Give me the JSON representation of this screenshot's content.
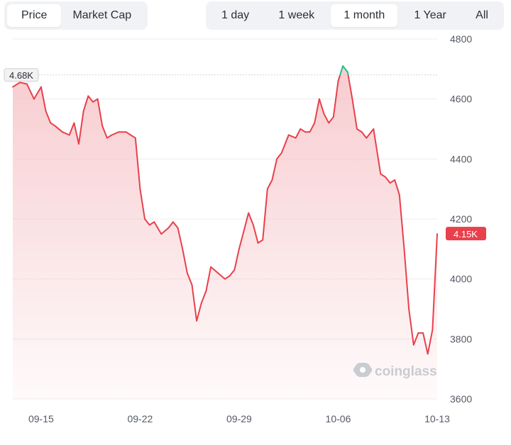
{
  "tabs_left": [
    {
      "label": "Price",
      "active": true
    },
    {
      "label": "Market Cap",
      "active": false
    }
  ],
  "tabs_right": [
    {
      "label": "1 day",
      "active": false
    },
    {
      "label": "1 week",
      "active": false
    },
    {
      "label": "1 month",
      "active": true
    },
    {
      "label": "1 Year",
      "active": false
    },
    {
      "label": "All",
      "active": false
    }
  ],
  "watermark": "coinglass",
  "colors": {
    "down": "#e8404c",
    "up": "#1ec28b",
    "fill": "#f6c3c7",
    "grid": "#ececec",
    "text": "#555a63"
  },
  "chart_data": {
    "type": "area",
    "title": "",
    "xlabel": "",
    "ylabel": "",
    "y_axis_position": "right",
    "ylim": [
      3600,
      4800
    ],
    "xlim": [
      "09-13",
      "10-13"
    ],
    "y_ticks": [
      3600,
      3800,
      4000,
      4200,
      4400,
      4600,
      4800
    ],
    "x_ticks": [
      "09-15",
      "09-22",
      "09-29",
      "10-06",
      "10-13"
    ],
    "grid": true,
    "reference_line": {
      "value": 4680,
      "label": "4.68K"
    },
    "last_value": {
      "value": 4150,
      "label": "4.15K"
    },
    "series": [
      {
        "x": [
          "09-13",
          "09-13",
          "09-14",
          "09-14",
          "09-15",
          "09-15",
          "09-15",
          "09-16",
          "09-16",
          "09-17",
          "09-17",
          "09-17",
          "09-18",
          "09-18",
          "09-18",
          "09-19",
          "09-19",
          "09-19",
          "09-20",
          "09-20",
          "09-21",
          "09-21",
          "09-21",
          "09-22",
          "09-22",
          "09-22",
          "09-23",
          "09-23",
          "09-24",
          "09-24",
          "09-24",
          "09-25",
          "09-25",
          "09-25",
          "09-26",
          "09-26",
          "09-26",
          "09-27",
          "09-27",
          "09-28",
          "09-28",
          "09-28",
          "09-29",
          "09-29",
          "09-29",
          "09-30",
          "09-30",
          "09-30",
          "10-01",
          "10-01",
          "10-01",
          "10-02",
          "10-02",
          "10-03",
          "10-03",
          "10-03",
          "10-04",
          "10-04",
          "10-04",
          "10-05",
          "10-05",
          "10-05",
          "10-06",
          "10-06",
          "10-06",
          "10-07",
          "10-07",
          "10-07",
          "10-08",
          "10-08",
          "10-09",
          "10-09",
          "10-09",
          "10-10",
          "10-10",
          "10-10",
          "10-11",
          "10-11",
          "10-11",
          "10-12",
          "10-12",
          "10-12",
          "10-13",
          "10-13"
        ],
        "values": [
          4640,
          4655,
          4650,
          4600,
          4640,
          4560,
          4520,
          4510,
          4490,
          4480,
          4520,
          4450,
          4560,
          4610,
          4590,
          4600,
          4510,
          4470,
          4480,
          4490,
          4490,
          4480,
          4470,
          4300,
          4200,
          4180,
          4190,
          4150,
          4170,
          4190,
          4170,
          4100,
          4020,
          3980,
          3860,
          3920,
          3960,
          4040,
          4020,
          4000,
          4010,
          4030,
          4100,
          4160,
          4220,
          4180,
          4120,
          4130,
          4300,
          4330,
          4400,
          4420,
          4480,
          4470,
          4500,
          4490,
          4490,
          4520,
          4600,
          4550,
          4520,
          4540,
          4660,
          4710,
          4690,
          4600,
          4500,
          4490,
          4470,
          4500,
          4350,
          4340,
          4320,
          4330,
          4280,
          4100,
          3900,
          3780,
          3820,
          3820,
          3750,
          3830,
          4150,
          4150
        ]
      }
    ]
  }
}
